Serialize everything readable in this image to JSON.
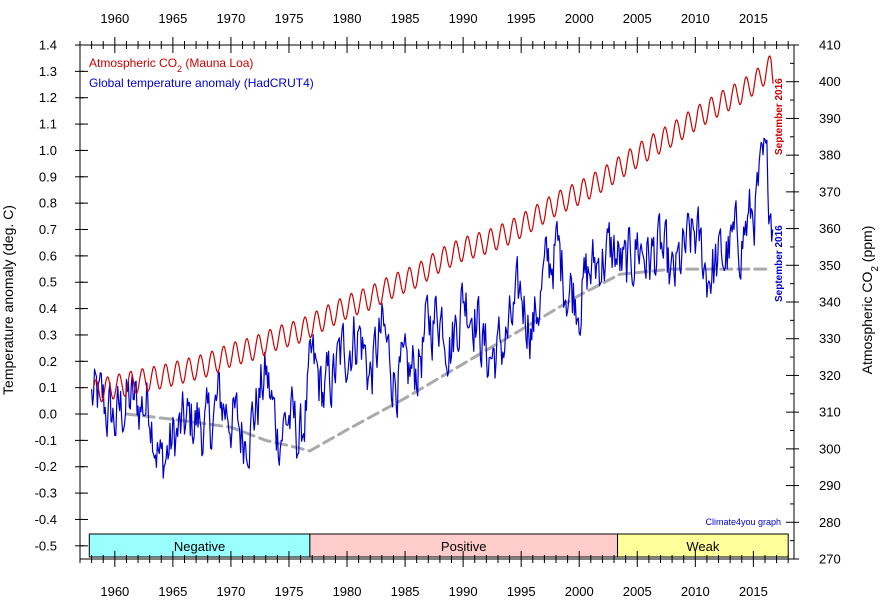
{
  "chart_data": {
    "type": "line",
    "x_range": [
      1957,
      2018.5
    ],
    "x_ticks": [
      1960,
      1965,
      1970,
      1975,
      1980,
      1985,
      1990,
      1995,
      2000,
      2005,
      2010,
      2015
    ],
    "left_axis": {
      "label": "Temperature anomaly (deg. C)",
      "range": [
        -0.55,
        1.4
      ],
      "ticks": [
        "-0.5",
        "-0.4",
        "-0.3",
        "-0.2",
        "-0.1",
        "0.0",
        "0.1",
        "0.2",
        "0.3",
        "0.4",
        "0.5",
        "0.6",
        "0.7",
        "0.8",
        "0.9",
        "1.0",
        "1.1",
        "1.2",
        "1.3",
        "1.4"
      ]
    },
    "right_axis": {
      "label_main": "Atmospheric CO",
      "label_sub": "2",
      "label_unit": " (ppm)",
      "range": [
        270,
        410
      ],
      "ticks": [
        270,
        280,
        290,
        300,
        310,
        320,
        330,
        340,
        350,
        360,
        370,
        380,
        390,
        400,
        410
      ]
    },
    "legend": {
      "co2_main": "Atmospheric CO",
      "co2_sub": "2",
      "co2_tail": " (Mauna Loa)",
      "temp": "Global temperature anomaly (HadCRUT4)"
    },
    "series": [
      {
        "name": "Atmospheric CO2 (Mauna Loa)",
        "axis": "right",
        "color": "#cc0000",
        "x": [
          1958.2,
          1960,
          1962,
          1964,
          1966,
          1968,
          1970,
          1972,
          1974,
          1976,
          1978,
          1980,
          1982,
          1984,
          1986,
          1988,
          1990,
          1992,
          1994,
          1996,
          1998,
          2000,
          2002,
          2004,
          2006,
          2008,
          2010,
          2012,
          2014,
          2015.5,
          2016.5,
          2016.7
        ],
        "values": [
          315.5,
          316.9,
          318.4,
          319.6,
          321.2,
          322.9,
          325.6,
          327.4,
          330.2,
          332.1,
          335.4,
          338.7,
          341.1,
          344.4,
          347.1,
          351.3,
          354.4,
          356.3,
          358.9,
          362.6,
          366.7,
          369.7,
          373.3,
          377.7,
          381.9,
          385.6,
          389.9,
          393.8,
          397.2,
          400.8,
          404.2,
          401.0
        ],
        "seasonal_amplitude_ppm": 3.2
      },
      {
        "name": "Global temperature anomaly (HadCRUT4)",
        "axis": "left",
        "color": "#0000cc",
        "x": [
          1958,
          1959,
          1960,
          1961,
          1962,
          1963,
          1964,
          1965,
          1966,
          1967,
          1968,
          1969,
          1970,
          1971,
          1972,
          1973,
          1974,
          1975,
          1976,
          1977,
          1978,
          1979,
          1980,
          1981,
          1982,
          1983,
          1984,
          1985,
          1986,
          1987,
          1988,
          1989,
          1990,
          1991,
          1992,
          1993,
          1994,
          1995,
          1996,
          1997,
          1998,
          1999,
          2000,
          2001,
          2002,
          2003,
          2004,
          2005,
          2006,
          2007,
          2008,
          2009,
          2010,
          2011,
          2012,
          2013,
          2014,
          2015,
          2016,
          2016.7
        ],
        "values": [
          0.06,
          0.03,
          -0.03,
          0.05,
          0.03,
          0.05,
          -0.2,
          -0.1,
          -0.05,
          -0.02,
          -0.07,
          0.05,
          0.0,
          -0.08,
          0.0,
          0.15,
          -0.07,
          -0.01,
          -0.1,
          0.18,
          0.07,
          0.16,
          0.26,
          0.32,
          0.14,
          0.31,
          0.16,
          0.12,
          0.18,
          0.33,
          0.4,
          0.27,
          0.45,
          0.4,
          0.22,
          0.23,
          0.31,
          0.45,
          0.33,
          0.52,
          0.63,
          0.49,
          0.45,
          0.54,
          0.6,
          0.61,
          0.53,
          0.65,
          0.59,
          0.62,
          0.49,
          0.6,
          0.68,
          0.54,
          0.57,
          0.62,
          0.68,
          0.76,
          0.93,
          0.75
        ]
      },
      {
        "name": "Temperature trend (dashed)",
        "axis": "left",
        "color": "#aaaaaa",
        "x": [
          1961,
          1965,
          1970,
          1973,
          1975,
          1976.8,
          1980,
          1985,
          1990,
          1995,
          2000,
          2003.5,
          2008,
          2012,
          2016.5
        ],
        "values": [
          0.0,
          -0.02,
          -0.05,
          -0.1,
          -0.12,
          -0.14,
          -0.06,
          0.06,
          0.19,
          0.32,
          0.45,
          0.53,
          0.55,
          0.55,
          0.55
        ]
      }
    ],
    "phase_bar": [
      {
        "label": "Negative",
        "start": 1957.8,
        "end": 1976.8,
        "color": "#99ffff"
      },
      {
        "label": "Positive",
        "start": 1976.8,
        "end": 2003.3,
        "color": "#ffcccc"
      },
      {
        "label": "Weak",
        "start": 2003.3,
        "end": 2018.0,
        "color": "#ffff99"
      }
    ],
    "annotations": {
      "co2_last": "September 2016",
      "temp_last": "September 2016",
      "credit": "Climate4you graph"
    }
  }
}
